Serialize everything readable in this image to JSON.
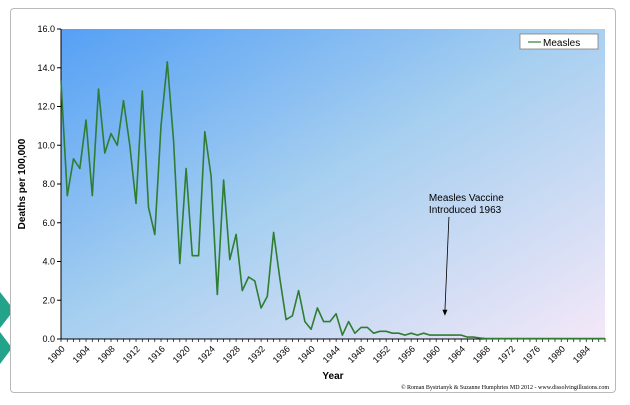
{
  "colors": {
    "series_line": "#2f7d32",
    "plot_bg_start": "#55a0f5",
    "plot_bg_mid": "#a6cff0",
    "plot_bg_end": "#f4e8f8",
    "page_accent": "#22a38a"
  },
  "chart_data": {
    "type": "line",
    "title": "",
    "xlabel": "Year",
    "ylabel": "Deaths per 100,000",
    "xlim": [
      1900,
      1987
    ],
    "ylim": [
      0,
      16
    ],
    "y_ticks": [
      "0.0",
      "2.0",
      "4.0",
      "6.0",
      "8.0",
      "10.0",
      "12.0",
      "14.0",
      "16.0"
    ],
    "x_ticks": [
      "1900",
      "1904",
      "1908",
      "1912",
      "1916",
      "1920",
      "1924",
      "1928",
      "1932",
      "1936",
      "1940",
      "1944",
      "1948",
      "1952",
      "1956",
      "1960",
      "1964",
      "1968",
      "1972",
      "1976",
      "1980",
      "1984"
    ],
    "grid": false,
    "legend_position": "top-right",
    "series": [
      {
        "name": "Measles",
        "x": [
          1900,
          1901,
          1902,
          1903,
          1904,
          1905,
          1906,
          1907,
          1908,
          1909,
          1910,
          1911,
          1912,
          1913,
          1914,
          1915,
          1916,
          1917,
          1918,
          1919,
          1920,
          1921,
          1922,
          1923,
          1924,
          1925,
          1926,
          1927,
          1928,
          1929,
          1930,
          1931,
          1932,
          1933,
          1934,
          1935,
          1936,
          1937,
          1938,
          1939,
          1940,
          1941,
          1942,
          1943,
          1944,
          1945,
          1946,
          1947,
          1948,
          1949,
          1950,
          1951,
          1952,
          1953,
          1954,
          1955,
          1956,
          1957,
          1958,
          1959,
          1960,
          1961,
          1962,
          1963,
          1964,
          1965,
          1966,
          1967,
          1968,
          1969,
          1970,
          1971,
          1972,
          1973,
          1974,
          1975,
          1976,
          1977,
          1978,
          1979,
          1980,
          1981,
          1982,
          1983,
          1984,
          1985,
          1986,
          1987
        ],
        "values": [
          13.3,
          7.4,
          9.3,
          8.8,
          11.3,
          7.4,
          12.9,
          9.6,
          10.6,
          10.0,
          12.3,
          10.0,
          7.0,
          12.8,
          6.8,
          5.4,
          11.0,
          14.3,
          10.2,
          3.9,
          8.8,
          4.3,
          4.3,
          10.7,
          8.4,
          2.3,
          8.2,
          4.1,
          5.4,
          2.5,
          3.2,
          3.0,
          1.6,
          2.2,
          5.5,
          3.1,
          1.0,
          1.2,
          2.5,
          0.9,
          0.5,
          1.6,
          0.9,
          0.9,
          1.3,
          0.2,
          0.9,
          0.3,
          0.6,
          0.6,
          0.3,
          0.4,
          0.4,
          0.3,
          0.3,
          0.2,
          0.3,
          0.2,
          0.3,
          0.2,
          0.2,
          0.2,
          0.2,
          0.2,
          0.2,
          0.1,
          0.1,
          0.05,
          0.02,
          0.02,
          0.02,
          0.02,
          0.02,
          0.02,
          0.02,
          0.02,
          0.02,
          0.02,
          0.02,
          0.02,
          0.02,
          0.02,
          0.02,
          0.02,
          0.02,
          0.02,
          0.02,
          0.02
        ]
      }
    ],
    "annotations": [
      {
        "lines": [
          "Measles Vaccine",
          "Introduced 1963"
        ],
        "x": 1963,
        "y": 1.2
      }
    ],
    "credit": "© Roman Bystrianyk & Suzanne Humphries MD 2012 - www.dissolvingillusions.com"
  }
}
